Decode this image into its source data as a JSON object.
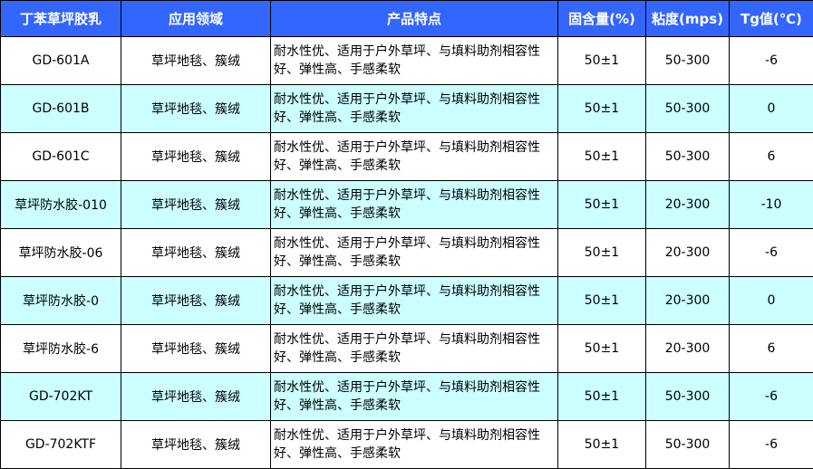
{
  "headers": [
    "丁苯草坪胶乳",
    "应用领域",
    "产品特点",
    "固含量(%)",
    "粘度(mps)",
    "Tg值(℃)"
  ],
  "rows": [
    {
      "name": "GD-601A",
      "field": "草坪地毯、簇绒",
      "feature": "耐水性优、适用于户外草坪、与填料助剂相容性好、弹性高、手感柔软",
      "solid": "50±1",
      "viscosity": "50-300",
      "tg": "-6"
    },
    {
      "name": "GD-601B",
      "field": "草坪地毯、簇绒",
      "feature": "耐水性优、适用于户外草坪、与填料助剂相容性好、弹性高、手感柔软",
      "solid": "50±1",
      "viscosity": "50-300",
      "tg": "0"
    },
    {
      "name": "GD-601C",
      "field": "草坪地毯、簇绒",
      "feature": "耐水性优、适用于户外草坪、与填料助剂相容性好、弹性高、手感柔软",
      "solid": "50±1",
      "viscosity": "50-300",
      "tg": "6"
    },
    {
      "name": "草坪防水胶-010",
      "field": "草坪地毯、簇绒",
      "feature": "耐水性优、适用于户外草坪、与填料助剂相容性好、弹性高、手感柔软",
      "solid": "50±1",
      "viscosity": "20-300",
      "tg": "-10"
    },
    {
      "name": "草坪防水胶-06",
      "field": "草坪地毯、簇绒",
      "feature": "耐水性优、适用于户外草坪、与填料助剂相容性好、弹性高、手感柔软",
      "solid": "50±1",
      "viscosity": "20-300",
      "tg": "-6"
    },
    {
      "name": "草坪防水胶-0",
      "field": "草坪地毯、簇绒",
      "feature": "耐水性优、适用于户外草坪、与填料助剂相容性好、弹性高、手感柔软",
      "solid": "50±1",
      "viscosity": "20-300",
      "tg": "0"
    },
    {
      "name": "草坪防水胶-6",
      "field": "草坪地毯、簇绒",
      "feature": "耐水性优、适用于户外草坪、与填料助剂相容性好、弹性高、手感柔软",
      "solid": "50±1",
      "viscosity": "20-300",
      "tg": "6"
    },
    {
      "name": "GD-702KT",
      "field": "草坪地毯、簇绒",
      "feature": "耐水性优、适用于户外草坪、与填料助剂相容性好、弹性高、手感柔软",
      "solid": "50±1",
      "viscosity": "50-300",
      "tg": "-6"
    },
    {
      "name": "GD-702KTF",
      "field": "草坪地毯、簇绒",
      "feature": "耐水性优、适用于户外草坪、与填料助剂相容性好、弹性高、手感柔软",
      "solid": "50±1",
      "viscosity": "50-300",
      "tg": "-6"
    }
  ],
  "colors": {
    "header": "#3366ff",
    "alt_row": "#ccffff"
  }
}
